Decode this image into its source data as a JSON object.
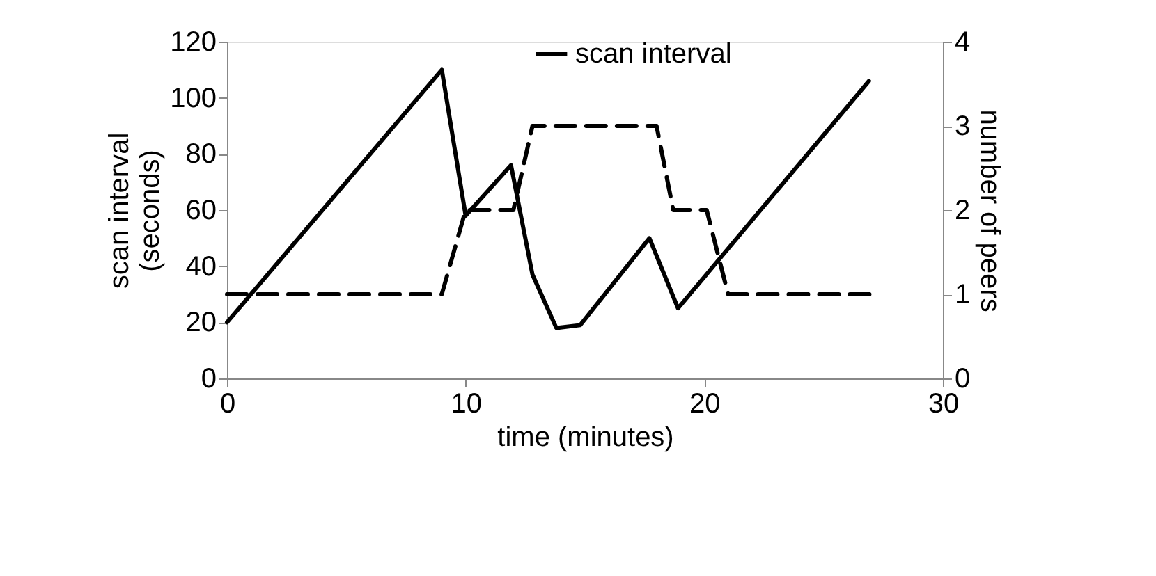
{
  "chart_data": {
    "type": "line",
    "xlabel": "time (minutes)",
    "ylabel": "scan interval\n(seconds)",
    "y2label": "number of peers",
    "xlim": [
      0,
      30
    ],
    "xticks": [
      0,
      10,
      20,
      30
    ],
    "ylim": [
      0,
      120
    ],
    "yticks": [
      0,
      20,
      40,
      60,
      80,
      100,
      120
    ],
    "y2lim": [
      0,
      4
    ],
    "y2ticks": [
      0,
      1,
      2,
      3,
      4
    ],
    "grid": false,
    "legend": "top",
    "marker": "none",
    "series": [
      {
        "name": "scan interval",
        "color": "#000000",
        "line_style": "solid",
        "x": [
          0,
          9,
          10,
          11.9,
          12.8,
          13.8,
          14.8,
          17.7,
          18.9,
          26.9
        ],
        "values": [
          20,
          110,
          58,
          76,
          37,
          18,
          19,
          50,
          25,
          106
        ]
      },
      {
        "color": "#000000",
        "line_style": "dashed",
        "axis": "y2",
        "x": [
          0,
          9,
          10,
          12,
          12.8,
          18,
          18.7,
          20.1,
          21,
          27
        ],
        "values": [
          1,
          1,
          2,
          2,
          3,
          3,
          2,
          2,
          1,
          1
        ]
      }
    ]
  }
}
